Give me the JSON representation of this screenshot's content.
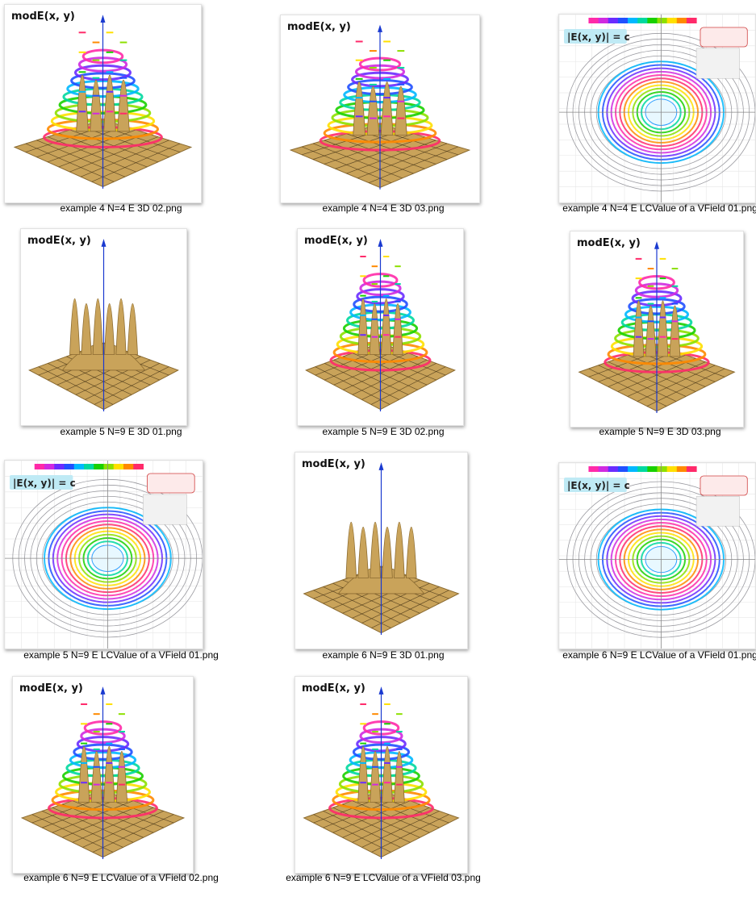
{
  "files": [
    {
      "name": "example 4  N=4  E 3D 02.png",
      "type": "3d",
      "title": "modE(x, y)",
      "variant": "rainbow"
    },
    {
      "name": "example 4  N=4  E 3D 03.png",
      "type": "3d",
      "title": "modE(x, y)",
      "variant": "rainbow"
    },
    {
      "name": "example 4 N=4  E LCValue of a VField 01.png",
      "type": "2d",
      "title": "|E(x, y)| = c"
    },
    {
      "name": "example 5  N=9  E 3D 01.png",
      "type": "3d",
      "title": "modE(x, y)",
      "variant": "gold"
    },
    {
      "name": "example 5  N=9  E 3D 02.png",
      "type": "3d",
      "title": "modE(x, y)",
      "variant": "rainbow"
    },
    {
      "name": "example 5  N=9  E 3D 03.png",
      "type": "3d",
      "title": "modE(x, y)",
      "variant": "rainbow"
    },
    {
      "name": "example 5 N=9  E LCValue of a VField 01.png",
      "type": "2d",
      "title": "|E(x, y)| = c"
    },
    {
      "name": "example 6  N=9  E 3D 01.png",
      "type": "3d",
      "title": "modE(x, y)",
      "variant": "gold"
    },
    {
      "name": "example 6 N=9  E LCValue of a VField 01.png",
      "type": "2d",
      "title": "|E(x, y)| = c"
    },
    {
      "name": "example 6 N=9  E LCValue of a VField 02.png",
      "type": "3d",
      "title": "modE(x, y)",
      "variant": "rainbow"
    },
    {
      "name": "example 6 N=9  E LCValue of a VField 03.png",
      "type": "3d",
      "title": "modE(x, y)",
      "variant": "rainbow"
    }
  ],
  "colors": {
    "gold": "#c9a35a",
    "gold_dark": "#8a6a30",
    "grid": "#3a2a10",
    "axis_blue": "#1a3ad0",
    "contour_red": "#d0204a"
  }
}
